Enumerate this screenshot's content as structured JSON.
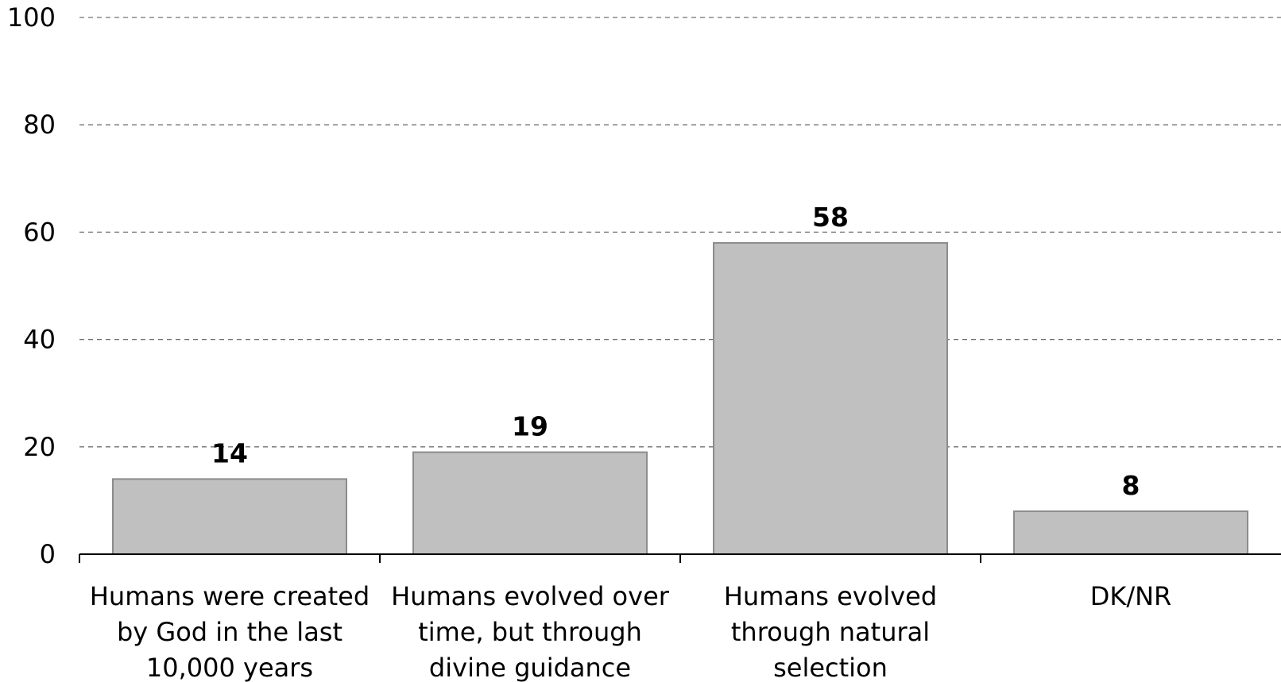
{
  "chart_data": {
    "type": "bar",
    "title": "",
    "xlabel": "",
    "ylabel": "",
    "categories": [
      [
        "Humans were created",
        "by God in the last",
        "10,000 years"
      ],
      [
        "Humans evolved over",
        "time, but through",
        "divine guidance"
      ],
      [
        "Humans evolved",
        "through natural",
        "selection"
      ],
      [
        "DK/NR"
      ]
    ],
    "values": [
      14,
      19,
      58,
      8
    ],
    "data_labels": [
      "14",
      "19",
      "58",
      "8"
    ],
    "ylim": [
      0,
      100
    ],
    "yticks": [
      0,
      20,
      40,
      60,
      80,
      100
    ],
    "ytick_labels": [
      "0",
      "20",
      "40",
      "60",
      "80",
      "100"
    ],
    "grid": true,
    "grid_style": "dashed",
    "legend": false,
    "colors": {
      "bar_fill": "#c0c0c0",
      "bar_stroke": "#8c8c8c",
      "grid": "#707070",
      "axis": "#000000",
      "text": "#000000"
    }
  }
}
